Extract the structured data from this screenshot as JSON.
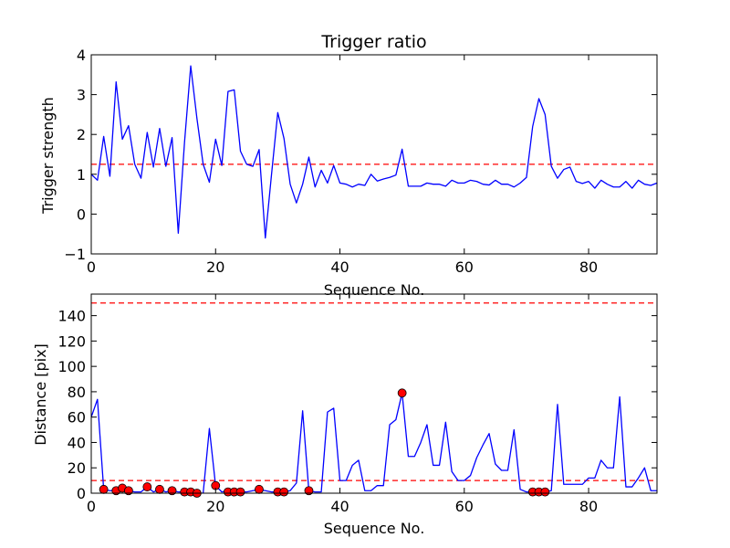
{
  "chart_data": [
    {
      "type": "line",
      "title": "Trigger ratio",
      "xlabel": "Sequence No.",
      "ylabel": "Trigger strength",
      "xlim": [
        0,
        91
      ],
      "ylim": [
        -1,
        4
      ],
      "xticks": [
        0,
        20,
        40,
        60,
        80
      ],
      "yticks": [
        -1,
        0,
        1,
        2,
        3,
        4
      ],
      "grid": false,
      "series": [
        {
          "color": "#0000ff",
          "x": [
            0,
            1,
            2,
            3,
            4,
            5,
            6,
            7,
            8,
            9,
            10,
            11,
            12,
            13,
            14,
            15,
            16,
            17,
            18,
            19,
            20,
            21,
            22,
            23,
            24,
            25,
            26,
            27,
            28,
            29,
            30,
            31,
            32,
            33,
            34,
            35,
            36,
            37,
            38,
            39,
            40,
            41,
            42,
            43,
            44,
            45,
            46,
            47,
            48,
            49,
            50,
            51,
            52,
            53,
            54,
            55,
            56,
            57,
            58,
            59,
            60,
            61,
            62,
            63,
            64,
            65,
            66,
            67,
            68,
            69,
            70,
            71,
            72,
            73,
            74,
            75,
            76,
            77,
            78,
            79,
            80,
            81,
            82,
            83,
            84,
            85,
            86,
            87,
            88,
            89,
            90,
            91
          ],
          "y": [
            1.0,
            0.85,
            1.95,
            0.95,
            3.32,
            1.88,
            2.22,
            1.25,
            0.9,
            2.05,
            1.18,
            2.15,
            1.2,
            1.92,
            -0.48,
            1.8,
            3.72,
            2.4,
            1.25,
            0.8,
            1.88,
            1.22,
            3.08,
            3.12,
            1.58,
            1.25,
            1.2,
            1.62,
            -0.6,
            1.0,
            2.55,
            1.9,
            0.75,
            0.28,
            0.75,
            1.43,
            0.68,
            1.1,
            0.78,
            1.22,
            0.78,
            0.75,
            0.68,
            0.75,
            0.72,
            1.0,
            0.83,
            0.88,
            0.92,
            0.98,
            1.63,
            0.7,
            0.7,
            0.7,
            0.78,
            0.75,
            0.75,
            0.7,
            0.85,
            0.78,
            0.78,
            0.85,
            0.82,
            0.75,
            0.73,
            0.85,
            0.75,
            0.75,
            0.68,
            0.78,
            0.92,
            2.2,
            2.9,
            2.5,
            1.2,
            0.9,
            1.12,
            1.18,
            0.82,
            0.77,
            0.82,
            0.65,
            0.85,
            0.75,
            0.68,
            0.68,
            0.82,
            0.65,
            0.85,
            0.75,
            0.72,
            0.78
          ]
        }
      ],
      "hlines": [
        {
          "y": 1.25,
          "color": "#ff0000",
          "style": "dashed"
        }
      ]
    },
    {
      "type": "line",
      "title": "",
      "xlabel": "Sequence No.",
      "ylabel": "Distance [pix]",
      "xlim": [
        0,
        91
      ],
      "ylim": [
        0,
        157
      ],
      "xticks": [
        0,
        20,
        40,
        60,
        80
      ],
      "yticks": [
        0,
        20,
        40,
        60,
        80,
        100,
        120,
        140
      ],
      "grid": false,
      "series": [
        {
          "color": "#0000ff",
          "x": [
            0,
            1,
            2,
            3,
            4,
            5,
            6,
            7,
            8,
            9,
            10,
            11,
            12,
            13,
            14,
            15,
            16,
            17,
            18,
            19,
            20,
            21,
            22,
            23,
            24,
            25,
            26,
            27,
            28,
            29,
            30,
            31,
            32,
            33,
            34,
            35,
            36,
            37,
            38,
            39,
            40,
            41,
            42,
            43,
            44,
            45,
            46,
            47,
            48,
            49,
            50,
            51,
            52,
            53,
            54,
            55,
            56,
            57,
            58,
            59,
            60,
            61,
            62,
            63,
            64,
            65,
            66,
            67,
            68,
            69,
            70,
            71,
            72,
            73,
            74,
            75,
            76,
            77,
            78,
            79,
            80,
            81,
            82,
            83,
            84,
            85,
            86,
            87,
            88,
            89,
            90,
            91
          ],
          "y": [
            60,
            74,
            3,
            2,
            2,
            4,
            2,
            1,
            1,
            5,
            1,
            3,
            1,
            2,
            1,
            1,
            1,
            0,
            0,
            51,
            6,
            1,
            2,
            1,
            1,
            1,
            2,
            3,
            2,
            1,
            1,
            1,
            2,
            8,
            65,
            2,
            1,
            1,
            64,
            67,
            10,
            10,
            22,
            26,
            2,
            2,
            6,
            6,
            54,
            58,
            79,
            29,
            29,
            40,
            54,
            22,
            22,
            56,
            17,
            10,
            10,
            14,
            28,
            38,
            47,
            23,
            18,
            18,
            50,
            3,
            1,
            1,
            1,
            1,
            2,
            70,
            7,
            7,
            7,
            7,
            12,
            12,
            26,
            20,
            20,
            76,
            5,
            5,
            12,
            20,
            2,
            2
          ]
        }
      ],
      "markers": {
        "color": "#ff0000",
        "x": [
          2,
          4,
          5,
          6,
          9,
          11,
          13,
          15,
          16,
          17,
          20,
          22,
          23,
          24,
          27,
          30,
          31,
          35,
          50,
          71,
          72,
          73
        ],
        "y": [
          3,
          2,
          4,
          2,
          5,
          3,
          2,
          1,
          1,
          0,
          6,
          1,
          1,
          1,
          3,
          1,
          1,
          2,
          79,
          1,
          1,
          1
        ]
      },
      "hlines": [
        {
          "y": 150,
          "color": "#ff0000",
          "style": "dashed"
        },
        {
          "y": 10,
          "color": "#ff0000",
          "style": "dashed"
        }
      ]
    }
  ]
}
